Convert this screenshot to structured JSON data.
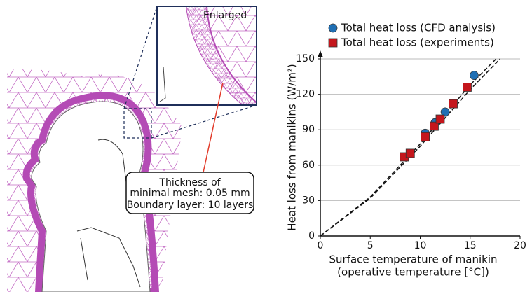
{
  "illustration": {
    "inset_label": "Enlarged",
    "note": [
      "Thickness of",
      "minimal mesh: 0.05 mm",
      "Boundary layer: 10 layers"
    ]
  },
  "chart_data": {
    "type": "scatter",
    "xlabel": [
      "Surface temperature of manikin",
      "(operative temperature [°C])"
    ],
    "ylabel": "Heat loss from manikins (W/m²)",
    "xlim": [
      0,
      20
    ],
    "ylim": [
      0,
      150
    ],
    "xticks": [
      0,
      5,
      10,
      15,
      20
    ],
    "yticks": [
      0,
      30,
      60,
      90,
      120,
      150
    ],
    "grid": true,
    "legend": "top-left",
    "series": [
      {
        "name": "Total heat loss (CFD analysis)",
        "color": "#1f6fb4",
        "marker": "circle",
        "x": [
          10.5,
          11.5,
          12.5,
          15.4
        ],
        "values": [
          87,
          96,
          105,
          136
        ]
      },
      {
        "name": "Total heat loss (experiments)",
        "color": "#c4161c",
        "marker": "square",
        "x": [
          8.4,
          9.0,
          10.5,
          11.4,
          12.0,
          13.3,
          14.7
        ],
        "values": [
          67,
          70,
          84,
          93,
          99,
          112,
          126
        ]
      }
    ],
    "fit_lines": [
      {
        "x": [
          0,
          5,
          10,
          15,
          17.6
        ],
        "values": [
          0,
          33,
          78,
          128,
          150
        ]
      },
      {
        "x": [
          0,
          5,
          10,
          15,
          18.0
        ],
        "values": [
          0,
          32,
          76,
          124,
          150
        ]
      }
    ]
  }
}
